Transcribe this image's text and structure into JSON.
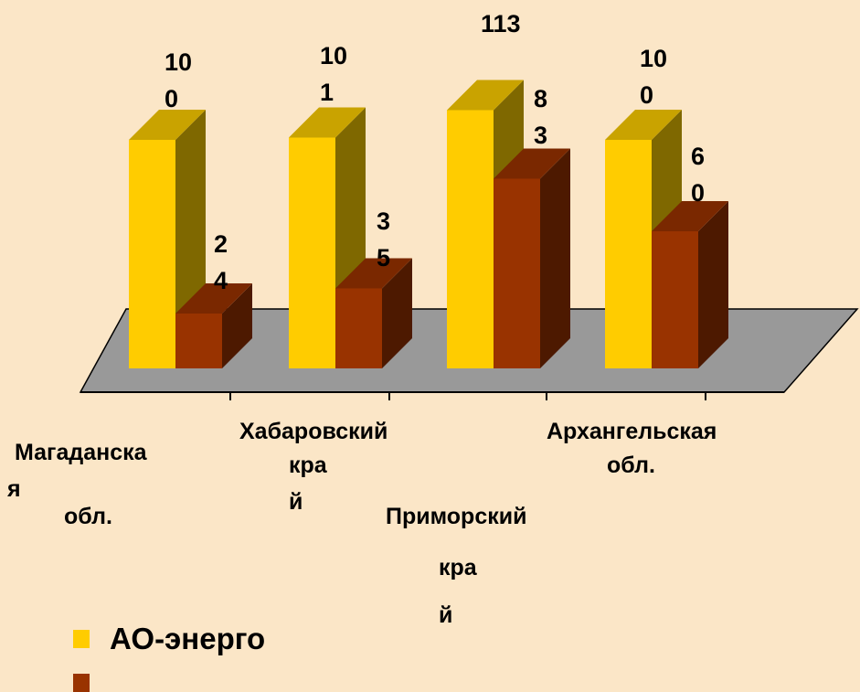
{
  "chart_data": {
    "type": "bar",
    "categories": [
      "Магаданская обл.",
      "Хабаровский край",
      "Приморский край",
      "Архангельская обл."
    ],
    "category_labels": [
      [
        "Магаданска",
        "я",
        "обл."
      ],
      [
        "Хабаровский",
        "кра",
        "й"
      ],
      [
        "Приморский",
        "кра",
        "й"
      ],
      [
        "Архангельская",
        "обл."
      ]
    ],
    "series": [
      {
        "name": "АО-энерго",
        "values": [
          100,
          101,
          113,
          100
        ],
        "color": "#ffcc00",
        "value_labels": [
          [
            "10",
            "0"
          ],
          [
            "10",
            "1"
          ],
          [
            "113"
          ],
          [
            "10",
            "0"
          ]
        ]
      },
      {
        "name": "",
        "values": [
          24,
          35,
          83,
          60
        ],
        "color": "#993300",
        "value_labels": [
          [
            "2",
            "4"
          ],
          [
            "3",
            "5"
          ],
          [
            "8",
            "3"
          ],
          [
            "6",
            "0"
          ]
        ]
      }
    ],
    "ylim": [
      0,
      113
    ],
    "legend": {
      "position": "bottom-left"
    }
  },
  "colors": {
    "background": "#fbe6c7",
    "floor": "#999999",
    "series1_side": "#7f6800",
    "series1_top": "#c9a300",
    "series2_side": "#4d1900",
    "series2_top": "#7a2800"
  }
}
